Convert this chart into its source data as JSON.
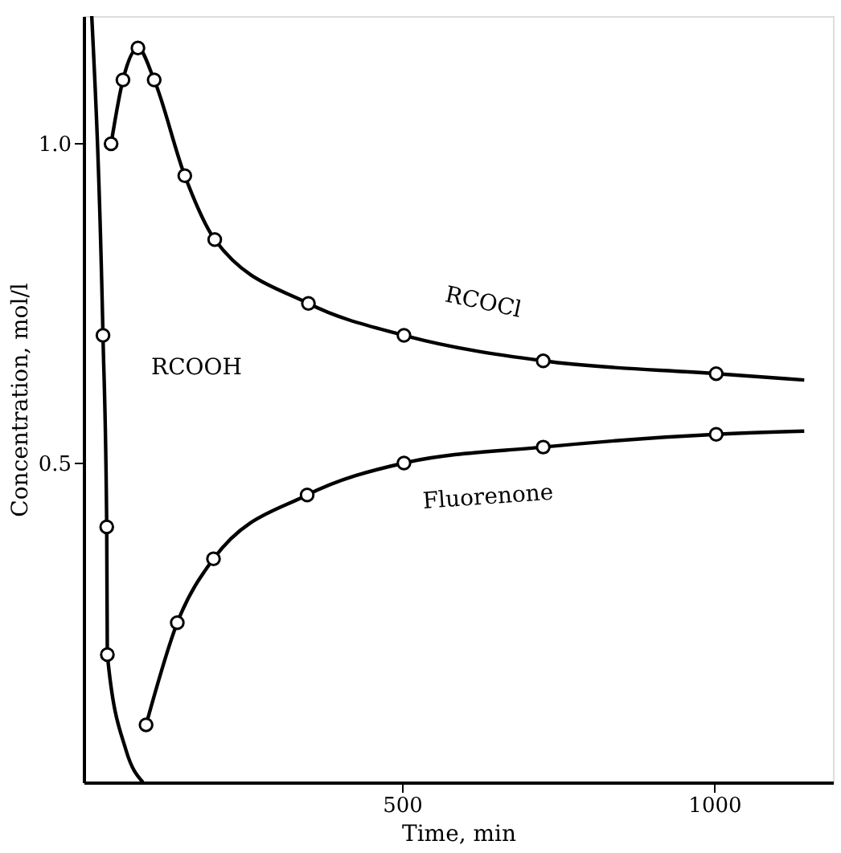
{
  "chart_data": {
    "type": "line",
    "xlabel": "Time, min",
    "ylabel": "Concentration, mol/l",
    "xlim": [
      -10,
      1190
    ],
    "ylim": [
      0,
      1.2
    ],
    "xticks": [
      500,
      {
        "value": 1000,
        "label": "1000"
      }
    ],
    "yticks": [
      0.5,
      {
        "value": 1,
        "label": "1.0"
      }
    ],
    "grid": false,
    "legend": false,
    "line_style": "solid",
    "series": [
      {
        "name": "RCOCl",
        "marker": "none",
        "color": "#000000",
        "x": [
          34,
          53,
          77,
          103,
          152,
          200,
          350,
          503,
          726,
          1003,
          1144
        ],
        "values": [
          1.0,
          1.1,
          1.15,
          1.1,
          0.95,
          0.85,
          0.75,
          0.7,
          0.66,
          0.64,
          0.63
        ]
      },
      {
        "type": "scatter",
        "marker": "circle",
        "color": "#000000",
        "x": [
          34,
          53,
          77,
          103,
          152,
          200,
          350,
          503,
          726,
          1003
        ],
        "values": [
          1.0,
          1.1,
          1.15,
          1.1,
          0.95,
          0.85,
          0.75,
          0.7,
          0.66,
          0.64
        ]
      },
      {
        "name": "RCOOH",
        "marker": "none",
        "color": "#000000",
        "x": [
          3,
          21,
          27,
          28,
          58,
          85
        ],
        "values": [
          1.2,
          0.7,
          0.4,
          0.2,
          0.05,
          0
        ]
      },
      {
        "type": "scatter",
        "marker": "circle",
        "color": "#000000",
        "x": [
          21,
          27,
          28
        ],
        "values": [
          0.7,
          0.4,
          0.2
        ]
      },
      {
        "name": "Fluorenone",
        "marker": "none",
        "color": "#000000",
        "x": [
          90,
          140,
          198,
          348,
          503,
          726,
          1003,
          1144
        ],
        "values": [
          0.09,
          0.25,
          0.35,
          0.45,
          0.5,
          0.525,
          0.545,
          0.55
        ]
      },
      {
        "type": "scatter",
        "marker": "circle",
        "color": "#000000",
        "x": [
          90,
          140,
          198,
          348,
          503,
          726,
          1003
        ],
        "values": [
          0.09,
          0.25,
          0.35,
          0.45,
          0.5,
          0.525,
          0.545
        ]
      }
    ]
  }
}
